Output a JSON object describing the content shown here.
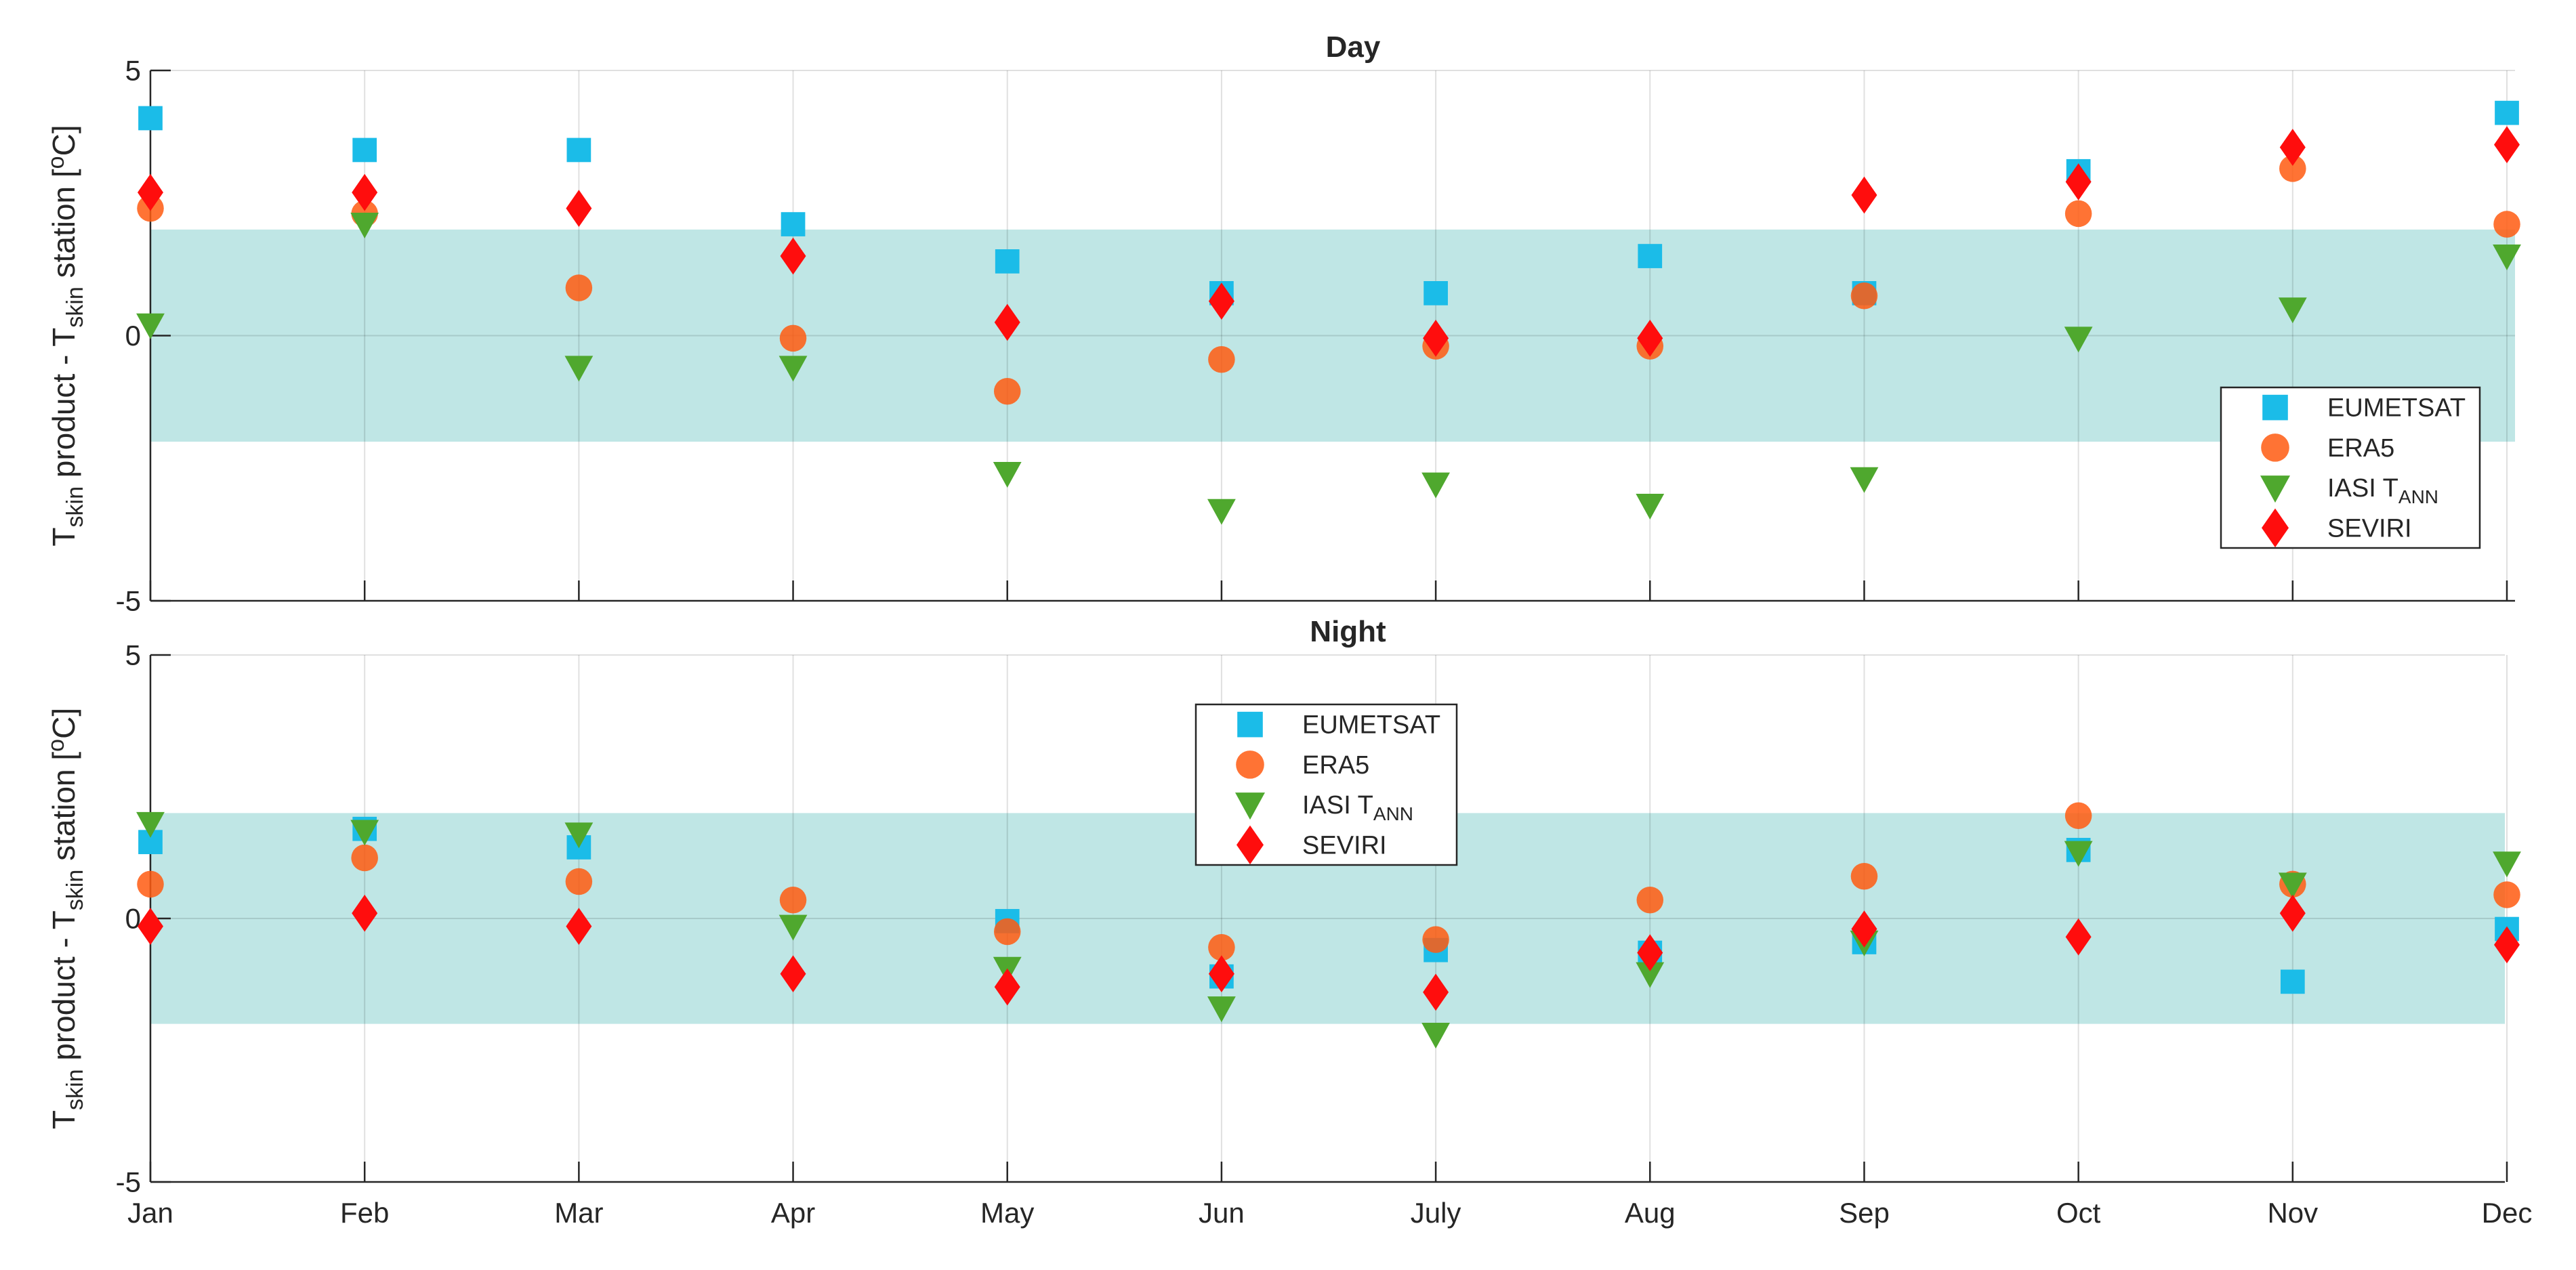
{
  "chart_data": [
    {
      "id": "day",
      "type": "scatter",
      "title": "Day",
      "ylabel": {
        "t1": "T",
        "s1": "skin",
        "m1": " product - T",
        "s2": "skin",
        "m2": " station [",
        "sup": "o",
        "end": "C]"
      },
      "ylim": [
        -5,
        5
      ],
      "yticks": [
        -5,
        0,
        5
      ],
      "ytick_labels": [
        "-5",
        "0",
        "5"
      ],
      "band": [
        -2,
        2
      ],
      "band_color": "#bfe6e5",
      "grid": true,
      "categories": [
        "Jan",
        "Feb",
        "Mar",
        "Apr",
        "May",
        "Jun",
        "July",
        "Aug",
        "Sep",
        "Oct",
        "Nov",
        "Dec"
      ],
      "legend_position": "lower-right",
      "series": [
        {
          "name": "EUMETSAT",
          "marker": "square",
          "color": "#1bbce8",
          "values": [
            4.1,
            3.5,
            3.5,
            2.1,
            1.4,
            0.8,
            0.8,
            1.5,
            0.8,
            3.1,
            null,
            4.2
          ]
        },
        {
          "name": "ERA5",
          "marker": "circle",
          "color": "#ff5a10",
          "values": [
            2.4,
            2.3,
            0.9,
            -0.05,
            -1.05,
            -0.45,
            -0.2,
            -0.2,
            0.75,
            2.3,
            3.15,
            2.1
          ]
        },
        {
          "name": "IASI T",
          "name_sub": "ANN",
          "marker": "triangle-down",
          "color": "#4fa82e",
          "values": [
            0.2,
            2.1,
            -0.6,
            -0.6,
            -2.6,
            -3.3,
            -2.8,
            -3.2,
            -2.7,
            -0.05,
            0.5,
            1.5
          ]
        },
        {
          "name": "SEVIRI",
          "marker": "diamond",
          "color": "#ff0d0d",
          "values": [
            2.7,
            2.7,
            2.4,
            1.5,
            0.25,
            0.65,
            -0.05,
            -0.05,
            2.65,
            2.9,
            3.55,
            3.6
          ]
        }
      ]
    },
    {
      "id": "night",
      "type": "scatter",
      "title": "Night",
      "ylabel": {
        "t1": "T",
        "s1": "skin",
        "m1": " product - T",
        "s2": "skin",
        "m2": " station [",
        "sup": "o",
        "end": "C]"
      },
      "ylim": [
        -5,
        5
      ],
      "yticks": [
        -5,
        0,
        5
      ],
      "ytick_labels": [
        "-5",
        "0",
        "5"
      ],
      "band": [
        -2,
        2
      ],
      "band_color": "#bfe6e5",
      "grid": true,
      "categories": [
        "Jan",
        "Feb",
        "Mar",
        "Apr",
        "May",
        "Jun",
        "July",
        "Aug",
        "Sep",
        "Oct",
        "Nov",
        "Dec"
      ],
      "legend_position": "top-center",
      "series": [
        {
          "name": "EUMETSAT",
          "marker": "square",
          "color": "#1bbce8",
          "values": [
            1.45,
            1.7,
            1.35,
            null,
            -0.05,
            -1.1,
            -0.6,
            -0.65,
            -0.45,
            1.3,
            -1.2,
            -0.2
          ]
        },
        {
          "name": "ERA5",
          "marker": "circle",
          "color": "#ff5a10",
          "values": [
            0.65,
            1.15,
            0.7,
            0.35,
            -0.25,
            -0.55,
            -0.4,
            0.35,
            0.8,
            1.95,
            0.65,
            0.45
          ]
        },
        {
          "name": "IASI T",
          "name_sub": "ANN",
          "marker": "triangle-down",
          "color": "#4fa82e",
          "values": [
            1.8,
            1.65,
            1.6,
            -0.15,
            -0.95,
            -1.7,
            -2.2,
            -1.05,
            -0.45,
            1.25,
            0.65,
            1.05
          ]
        },
        {
          "name": "SEVIRI",
          "marker": "diamond",
          "color": "#ff0d0d",
          "values": [
            -0.15,
            0.1,
            -0.15,
            -1.05,
            -1.3,
            -1.05,
            -1.4,
            -0.65,
            -0.2,
            -0.35,
            0.1,
            -0.5
          ]
        }
      ]
    }
  ]
}
